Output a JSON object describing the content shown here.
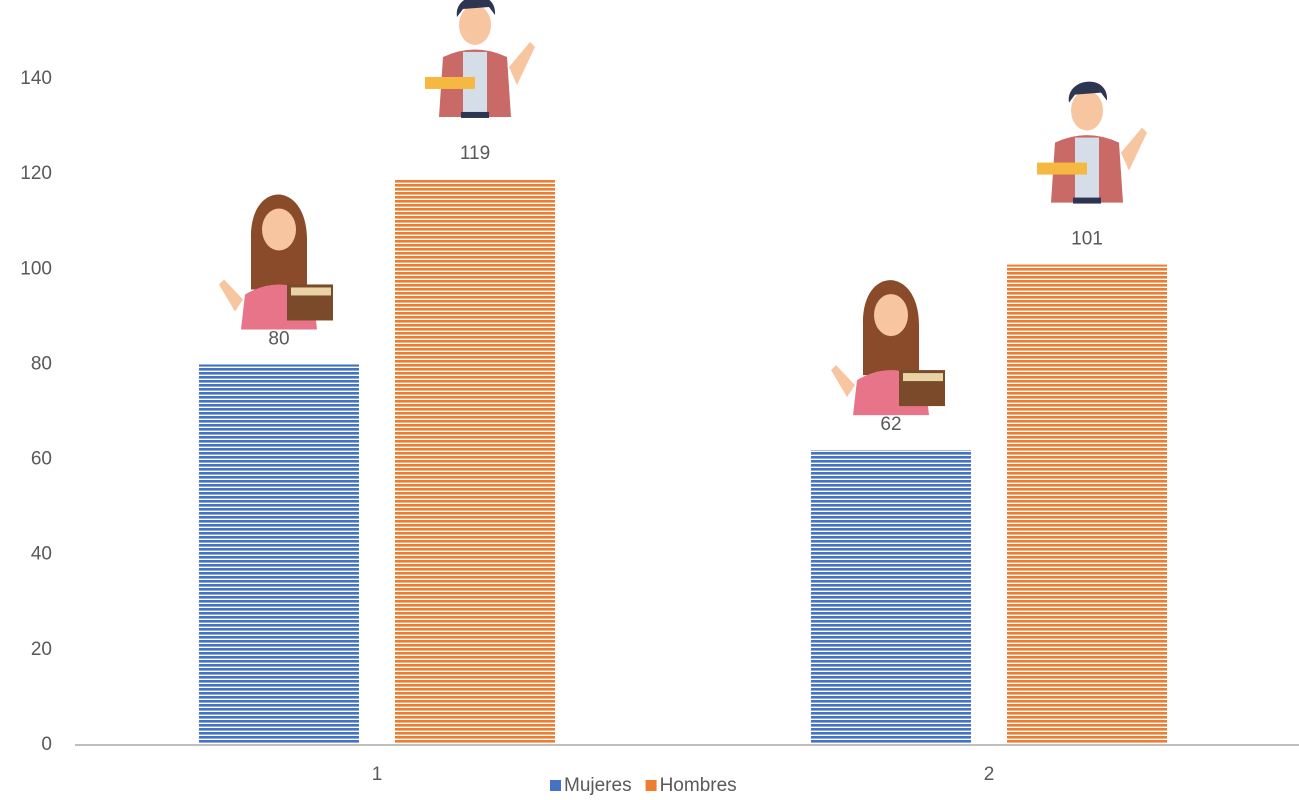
{
  "chart_data": {
    "type": "bar",
    "categories": [
      "1",
      "2"
    ],
    "series": [
      {
        "name": "Mujeres",
        "color": "#4472c4",
        "values": [
          80,
          62
        ]
      },
      {
        "name": "Hombres",
        "color": "#ed7d31",
        "values": [
          119,
          101
        ]
      }
    ],
    "ylim": [
      0,
      150
    ],
    "yticks": [
      0,
      20,
      40,
      60,
      80,
      100,
      120,
      140
    ],
    "grid": false,
    "legend": "bottom"
  }
}
